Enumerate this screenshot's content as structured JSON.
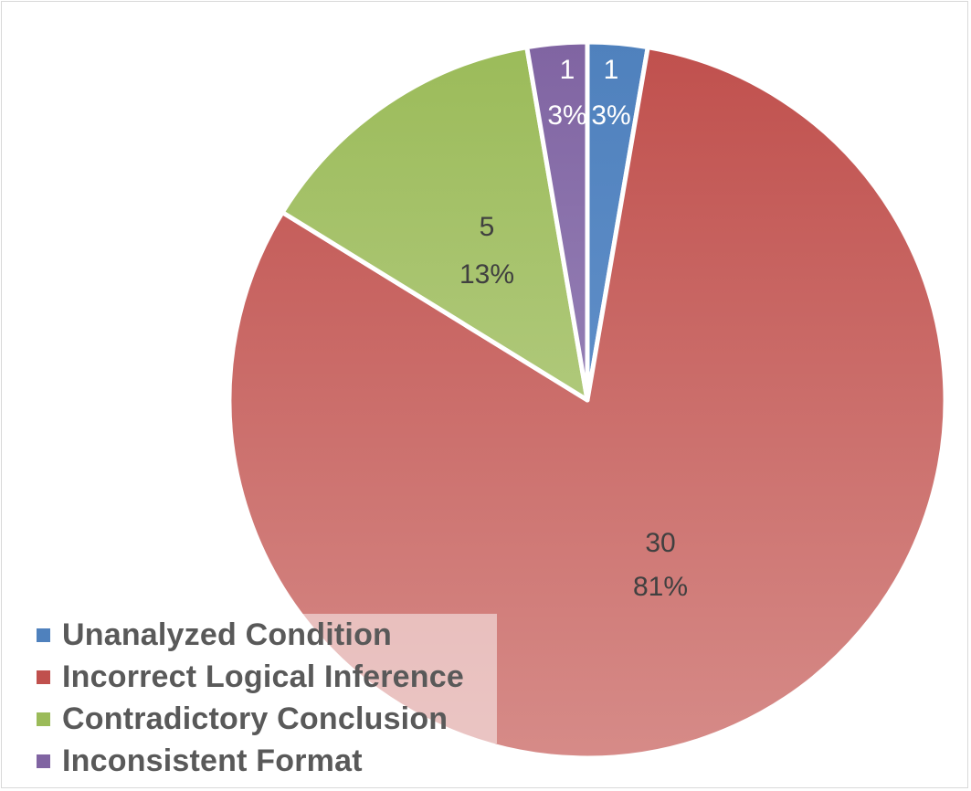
{
  "chart_data": {
    "type": "pie",
    "title": "",
    "start_angle_deg": 0,
    "direction": "clockwise",
    "legend_position": "bottom-left",
    "slices": [
      {
        "name": "Unanalyzed Condition",
        "value": 1,
        "percent_label": "3%",
        "color": "#6f9bd3",
        "color_dark": "#4f81bd"
      },
      {
        "name": "Incorrect Logical Inference",
        "value": 30,
        "percent_label": "81%",
        "color": "#d68b88",
        "color_dark": "#c0504d"
      },
      {
        "name": "Contradictory Conclusion",
        "value": 5,
        "percent_label": "13%",
        "color": "#c3d69b",
        "color_dark": "#9bbb59"
      },
      {
        "name": "Inconsistent Format",
        "value": 1,
        "percent_label": "3%",
        "color": "#a99bc8",
        "color_dark": "#8064a2"
      }
    ]
  }
}
